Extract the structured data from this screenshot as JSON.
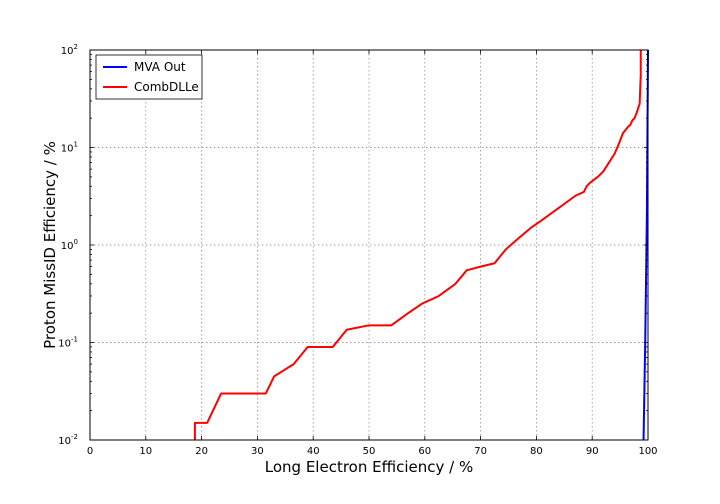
{
  "chart_data": {
    "type": "line",
    "xlabel": "Long Electron Efficiency / %",
    "ylabel": "Proton MissID Efficiency / %",
    "xlim": [
      0,
      100
    ],
    "ylim": [
      0.01,
      100
    ],
    "yscale": "log",
    "grid": true,
    "legend_position": "top-left",
    "x_ticks": [
      "0",
      "10",
      "20",
      "30",
      "40",
      "50",
      "60",
      "70",
      "80",
      "90",
      "100"
    ],
    "y_ticks": [
      {
        "value": 0.01,
        "base": "10",
        "exp": "-2"
      },
      {
        "value": 0.1,
        "base": "10",
        "exp": "-1"
      },
      {
        "value": 1,
        "base": "10",
        "exp": "0"
      },
      {
        "value": 10,
        "base": "10",
        "exp": "1"
      },
      {
        "value": 100,
        "base": "10",
        "exp": "2"
      }
    ],
    "series": [
      {
        "name": "MVA Out",
        "color": "#0000ff",
        "x": [
          99.2,
          99.5,
          99.8,
          100.0
        ],
        "y": [
          0.01,
          0.1,
          2.0,
          100
        ]
      },
      {
        "name": "CombDLLe",
        "color": "#ff0000",
        "x": [
          18.8,
          18.8,
          19.0,
          20.0,
          21.0,
          23.5,
          27.0,
          31.5,
          33.0,
          36.5,
          39.0,
          41.0,
          43.5,
          46.0,
          50.0,
          54.0,
          57.0,
          59.5,
          62.5,
          65.5,
          67.5,
          70.0,
          72.5,
          74.5,
          77.0,
          79.0,
          81.0,
          84.0,
          87.0,
          88.5,
          89.0,
          89.5,
          91.0,
          92.0,
          93.0,
          94.0,
          94.8,
          95.5,
          96.5,
          96.8,
          97.2,
          97.6,
          98.0,
          98.2,
          98.5,
          98.6,
          98.7,
          98.7
        ],
        "y": [
          0.01,
          0.015,
          0.015,
          0.015,
          0.015,
          0.03,
          0.03,
          0.03,
          0.045,
          0.06,
          0.09,
          0.09,
          0.09,
          0.135,
          0.15,
          0.15,
          0.2,
          0.25,
          0.3,
          0.4,
          0.55,
          0.6,
          0.65,
          0.9,
          1.2,
          1.5,
          1.8,
          2.4,
          3.2,
          3.5,
          4.0,
          4.3,
          5.0,
          5.7,
          7.0,
          8.6,
          11.0,
          14.0,
          16.5,
          17.0,
          19.0,
          20.0,
          23.0,
          25.0,
          28.0,
          40.0,
          55.0,
          100.0
        ]
      }
    ]
  }
}
